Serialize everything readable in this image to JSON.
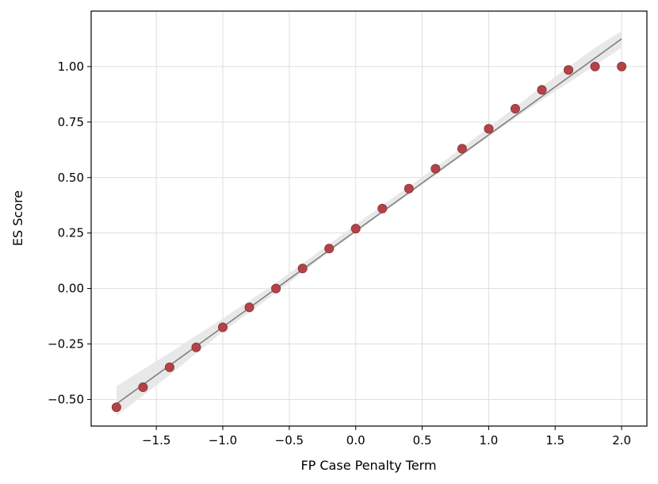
{
  "chart_data": {
    "type": "scatter",
    "title": "",
    "xlabel": "FP Case Penalty Term",
    "ylabel": "ES Score",
    "xlim": [
      -1.99,
      2.19
    ],
    "ylim": [
      -0.62,
      1.25
    ],
    "xticks": [
      -1.5,
      -1.0,
      -0.5,
      0.0,
      0.5,
      1.0,
      1.5,
      2.0
    ],
    "yticks": [
      -0.5,
      -0.25,
      0.0,
      0.25,
      0.5,
      0.75,
      1.0
    ],
    "xtick_labels": [
      "−1.5",
      "−1.0",
      "−0.5",
      "0.0",
      "0.5",
      "1.0",
      "1.5",
      "2.0"
    ],
    "ytick_labels": [
      "−0.50",
      "−0.25",
      "0.00",
      "0.25",
      "0.50",
      "0.75",
      "1.00"
    ],
    "grid": true,
    "points": {
      "x": [
        -1.8,
        -1.6,
        -1.4,
        -1.2,
        -1.0,
        -0.8,
        -0.6,
        -0.4,
        -0.2,
        0.0,
        0.2,
        0.4,
        0.6,
        0.8,
        1.0,
        1.2,
        1.4,
        1.6,
        1.8,
        2.0
      ],
      "y": [
        -0.535,
        -0.445,
        -0.355,
        -0.265,
        -0.175,
        -0.085,
        0.0,
        0.09,
        0.18,
        0.27,
        0.36,
        0.45,
        0.54,
        0.63,
        0.72,
        0.81,
        0.895,
        0.985,
        1.0,
        1.0
      ]
    },
    "fit_line": {
      "x": [
        -1.8,
        2.0
      ],
      "y": [
        -0.52,
        1.125
      ]
    },
    "confidence_band": {
      "x": [
        -1.8,
        -1.4,
        -1.0,
        -0.6,
        -0.2,
        0.2,
        0.6,
        1.0,
        1.4,
        1.8,
        2.0
      ],
      "lower": [
        -0.575,
        -0.39,
        -0.195,
        -0.02,
        0.165,
        0.34,
        0.51,
        0.685,
        0.85,
        1.005,
        1.085
      ],
      "upper": [
        -0.44,
        -0.29,
        -0.135,
        0.025,
        0.2,
        0.375,
        0.545,
        0.725,
        0.91,
        1.085,
        1.16
      ]
    },
    "colors": {
      "points": "#b04448",
      "points_edge": "#8f2f34",
      "fit_line": "#808080",
      "band": "#e8e8e8",
      "grid": "#dedede",
      "axis": "#000000"
    }
  }
}
